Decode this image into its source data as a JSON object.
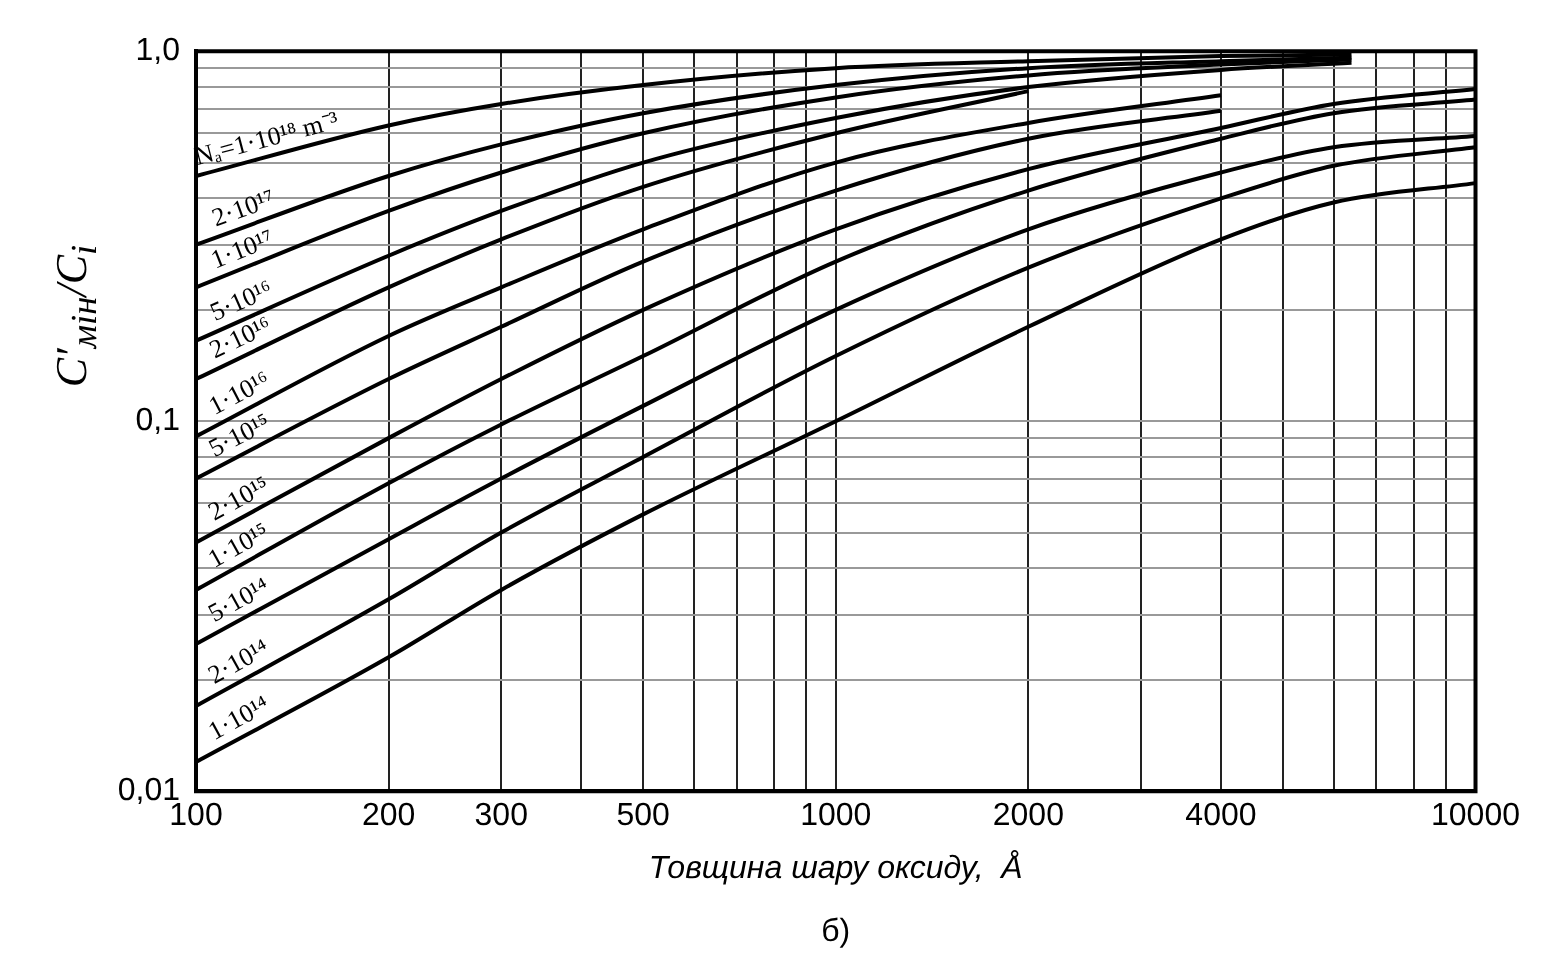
{
  "chart_data": {
    "type": "line",
    "xlabel": "Товщина шару оксиду,  Å",
    "ylabel": "C′$_{мін}$/C$_{i}$",
    "annotations": [
      "б)"
    ],
    "log": "xy",
    "grid": true,
    "legend": false,
    "marker": "none",
    "line_style": "solid",
    "xlim": [
      100,
      10000
    ],
    "ylim": [
      0.01,
      1
    ],
    "xticks": [
      100,
      200,
      300,
      {
        "value": 400,
        "label": null
      },
      500,
      {
        "value": 600,
        "label": null
      },
      {
        "value": 700,
        "label": null
      },
      {
        "value": 800,
        "label": null
      },
      {
        "value": 900,
        "label": null
      },
      1000,
      2000,
      {
        "value": 3000,
        "label": null
      },
      4000,
      {
        "value": 5000,
        "label": null
      },
      {
        "value": 6000,
        "label": null
      },
      {
        "value": 7000,
        "label": null
      },
      {
        "value": 8000,
        "label": null
      },
      {
        "value": 9000,
        "label": null
      },
      10000
    ],
    "yticks": [
      {
        "value": 0.01,
        "label": "0,01"
      },
      {
        "value": 0.02,
        "label": null
      },
      {
        "value": 0.03,
        "label": null
      },
      {
        "value": 0.04,
        "label": null
      },
      {
        "value": 0.05,
        "label": null
      },
      {
        "value": 0.06,
        "label": null
      },
      {
        "value": 0.07,
        "label": null
      },
      {
        "value": 0.08,
        "label": null
      },
      {
        "value": 0.09,
        "label": null
      },
      {
        "value": 0.1,
        "label": "0,1"
      },
      {
        "value": 0.2,
        "label": null
      },
      {
        "value": 0.3,
        "label": null
      },
      {
        "value": 0.4,
        "label": null
      },
      {
        "value": 0.5,
        "label": null
      },
      {
        "value": 0.6,
        "label": null
      },
      {
        "value": 0.7,
        "label": null
      },
      {
        "value": 0.8,
        "label": null
      },
      {
        "value": 0.9,
        "label": null
      },
      {
        "value": 1,
        "label": "1,0"
      }
    ],
    "series": [
      {
        "name": "Nₐ=1·10¹⁸ m⁻³",
        "color": "#000000",
        "x": [
          100,
          200,
          300,
          500,
          1000,
          2000,
          4000,
          6400
        ],
        "values": [
          0.46,
          0.63,
          0.72,
          0.81,
          0.9,
          0.94,
          0.97,
          0.98
        ]
      },
      {
        "name": "2·10¹⁷",
        "color": "#000000",
        "x": [
          100,
          200,
          300,
          500,
          1000,
          2000,
          4000,
          6400
        ],
        "values": [
          0.3,
          0.46,
          0.56,
          0.68,
          0.81,
          0.9,
          0.94,
          0.96
        ]
      },
      {
        "name": "1·10¹⁷",
        "color": "#000000",
        "x": [
          100,
          200,
          300,
          500,
          1000,
          2000,
          4000,
          6400
        ],
        "values": [
          0.23,
          0.37,
          0.47,
          0.6,
          0.75,
          0.86,
          0.92,
          0.95
        ]
      },
      {
        "name": "5·10¹⁶",
        "color": "#000000",
        "x": [
          100,
          200,
          300,
          500,
          1000,
          2000,
          4000,
          6400
        ],
        "values": [
          0.165,
          0.28,
          0.37,
          0.5,
          0.66,
          0.8,
          0.89,
          0.93
        ]
      },
      {
        "name": "2·10¹⁶",
        "color": "#000000",
        "x": [
          100,
          200,
          300,
          500,
          1000,
          2000
        ],
        "values": [
          0.13,
          0.23,
          0.31,
          0.43,
          0.6,
          0.78
        ]
      },
      {
        "name": "1·10¹⁶",
        "color": "#000000",
        "x": [
          100,
          200,
          300,
          500,
          1000,
          2000,
          4000
        ],
        "values": [
          0.091,
          0.17,
          0.23,
          0.33,
          0.5,
          0.64,
          0.76
        ]
      },
      {
        "name": "5·10¹⁵",
        "color": "#000000",
        "x": [
          100,
          200,
          300,
          500,
          1000,
          2000,
          4000
        ],
        "values": [
          0.07,
          0.13,
          0.18,
          0.27,
          0.42,
          0.58,
          0.69
        ]
      },
      {
        "name": "2·10¹⁵",
        "color": "#000000",
        "x": [
          100,
          200,
          300,
          500,
          1000,
          2000,
          4000,
          6000,
          10000
        ],
        "values": [
          0.047,
          0.09,
          0.13,
          0.2,
          0.33,
          0.48,
          0.62,
          0.72,
          0.79
        ]
      },
      {
        "name": "1·10¹⁵",
        "color": "#000000",
        "x": [
          100,
          200,
          300,
          500,
          1000,
          2000,
          4000,
          6000,
          10000
        ],
        "values": [
          0.035,
          0.068,
          0.098,
          0.15,
          0.27,
          0.42,
          0.58,
          0.68,
          0.74
        ]
      },
      {
        "name": "5·10¹⁴",
        "color": "#000000",
        "x": [
          100,
          200,
          300,
          500,
          1000,
          2000,
          4000,
          6000,
          10000
        ],
        "values": [
          0.025,
          0.048,
          0.07,
          0.11,
          0.2,
          0.33,
          0.47,
          0.55,
          0.59
        ]
      },
      {
        "name": "2·10¹⁴",
        "color": "#000000",
        "x": [
          100,
          200,
          300,
          500,
          1000,
          2000,
          4000,
          6000,
          10000
        ],
        "values": [
          0.017,
          0.033,
          0.05,
          0.08,
          0.15,
          0.26,
          0.4,
          0.49,
          0.55
        ]
      },
      {
        "name": "1·10¹⁴",
        "color": "#000000",
        "x": [
          100,
          200,
          300,
          500,
          1000,
          2000,
          4000,
          6000,
          10000
        ],
        "values": [
          0.012,
          0.023,
          0.035,
          0.056,
          0.1,
          0.18,
          0.31,
          0.39,
          0.44
        ]
      }
    ]
  }
}
